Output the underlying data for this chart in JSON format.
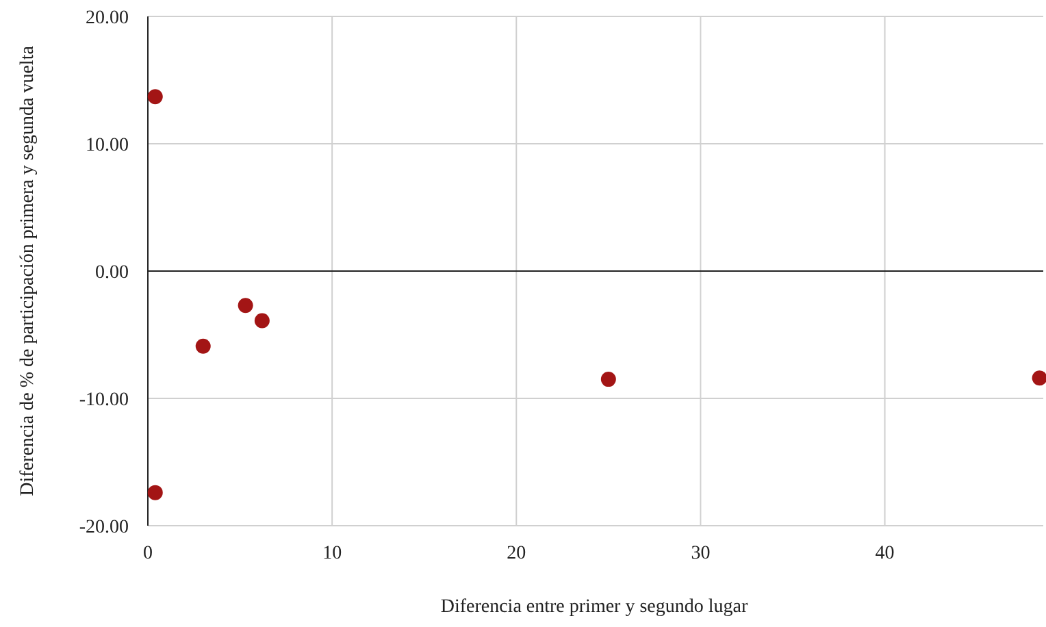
{
  "chart_data": {
    "type": "scatter",
    "xlabel": "Diferencia entre primer y segundo lugar",
    "ylabel": "Diferencia de % de participación primera y segunda vuelta",
    "x": [
      0.4,
      0.4,
      3.0,
      5.3,
      6.2,
      25.0,
      48.4
    ],
    "series": [
      {
        "color": "#a31515",
        "values": [
          13.7,
          -17.4,
          -5.9,
          -2.7,
          -3.9,
          -8.5,
          -8.4
        ]
      }
    ],
    "xlim": [
      0,
      48.6
    ],
    "ylim": [
      -20,
      20
    ],
    "xticks": [
      0,
      10,
      20,
      30,
      40
    ],
    "yticks": [
      {
        "value": -20,
        "label": "-20.00"
      },
      {
        "value": -10,
        "label": "-10.00"
      },
      {
        "value": 0,
        "label": "0.00"
      },
      {
        "value": 10,
        "label": "10.00"
      },
      {
        "value": 20,
        "label": "20.00"
      }
    ],
    "grid": true,
    "marker": "circle"
  }
}
